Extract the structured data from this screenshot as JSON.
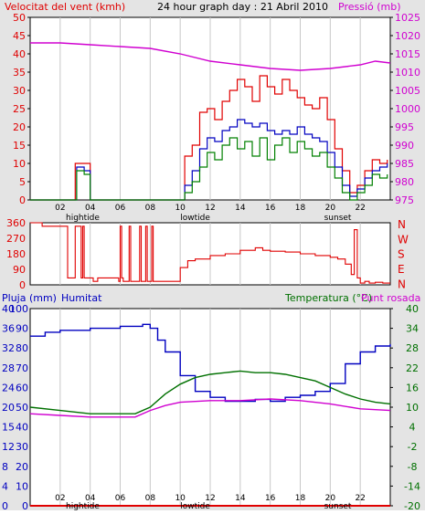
{
  "colors": {
    "wind": "#e00000",
    "gust": "#e00000",
    "avg": "#0000c0",
    "green": "#008000",
    "pressure": "#d000d0",
    "humidity": "#0000c0",
    "temperature": "#007000",
    "dewpoint": "#d000d0",
    "rain": "#e00000",
    "grid": "#c8c8c8",
    "panel_bg": "#ffffff",
    "outer_bg": "#e4e4e4",
    "black": "#000000"
  },
  "chart_data": [
    {
      "type": "line",
      "title": "24 hour graph day : 21 Abril 2010",
      "left_label": "Velocitat del vent (kmh)",
      "right_label": "Pressió (mb)",
      "x_ticks": [
        "02",
        "04",
        "06",
        "08",
        "10",
        "12",
        "14",
        "16",
        "18",
        "20",
        "22"
      ],
      "x_annotations": [
        {
          "x": 3.5,
          "text": "hightide"
        },
        {
          "x": 11.0,
          "text": "lowtide"
        },
        {
          "x": 20.5,
          "text": "sunset"
        }
      ],
      "xlim": [
        0,
        24
      ],
      "ylim_left": [
        0,
        50
      ],
      "yticks_left": [
        0,
        5,
        10,
        15,
        20,
        25,
        30,
        35,
        40,
        45,
        50
      ],
      "ylim_right": [
        975,
        1025
      ],
      "yticks_right": [
        975,
        980,
        985,
        990,
        995,
        1000,
        1005,
        1010,
        1015,
        1020,
        1025
      ],
      "series": [
        {
          "key": "gust",
          "axis": "left",
          "x": [
            0,
            2.5,
            3.0,
            3.6,
            4.0,
            9.9,
            10.3,
            10.8,
            11.3,
            11.8,
            12.3,
            12.8,
            13.3,
            13.8,
            14.3,
            14.8,
            15.3,
            15.8,
            16.3,
            16.8,
            17.3,
            17.8,
            18.3,
            18.8,
            19.3,
            19.8,
            20.3,
            20.8,
            21.3,
            21.8,
            22.3,
            22.8,
            23.3,
            23.8
          ],
          "y": [
            0,
            0,
            10,
            10,
            0,
            0,
            12,
            15,
            24,
            25,
            22,
            27,
            30,
            33,
            31,
            27,
            34,
            31,
            29,
            33,
            30,
            28,
            26,
            25,
            28,
            22,
            14,
            8,
            2,
            4,
            8,
            11,
            10,
            11
          ]
        },
        {
          "key": "avg",
          "axis": "left",
          "x": [
            0,
            2.6,
            3.1,
            3.6,
            4.0,
            9.9,
            10.3,
            10.8,
            11.3,
            11.8,
            12.3,
            12.8,
            13.3,
            13.8,
            14.3,
            14.8,
            15.3,
            15.8,
            16.3,
            16.8,
            17.3,
            17.8,
            18.3,
            18.8,
            19.3,
            19.8,
            20.3,
            20.8,
            21.3,
            21.8,
            22.3,
            22.8,
            23.3,
            23.8
          ],
          "y": [
            0,
            0,
            9,
            8,
            0,
            0,
            4,
            8,
            14,
            17,
            16,
            19,
            20,
            22,
            21,
            20,
            21,
            19,
            18,
            19,
            18,
            20,
            18,
            17,
            16,
            13,
            9,
            4,
            1,
            3,
            6,
            8,
            9,
            10
          ]
        },
        {
          "key": "green",
          "axis": "left",
          "x": [
            0,
            2.6,
            3.1,
            3.6,
            4.0,
            9.9,
            10.3,
            10.8,
            11.3,
            11.8,
            12.3,
            12.8,
            13.3,
            13.8,
            14.3,
            14.8,
            15.3,
            15.8,
            16.3,
            16.8,
            17.3,
            17.8,
            18.3,
            18.8,
            19.3,
            19.8,
            20.3,
            20.8,
            21.3,
            21.8,
            22.3,
            22.8,
            23.3,
            23.8
          ],
          "y": [
            0,
            0,
            8,
            7,
            0,
            0,
            2,
            5,
            9,
            13,
            11,
            15,
            17,
            14,
            16,
            12,
            17,
            11,
            15,
            17,
            13,
            16,
            14,
            12,
            13,
            9,
            6,
            2,
            0,
            2,
            4,
            7,
            6,
            7
          ]
        },
        {
          "key": "pressure",
          "axis": "right",
          "x": [
            0,
            2,
            4,
            6,
            8,
            10,
            12,
            14,
            16,
            18,
            20,
            22,
            23,
            24
          ],
          "y": [
            1018,
            1018,
            1017.5,
            1017,
            1016.5,
            1015,
            1013,
            1012,
            1011,
            1010.5,
            1011,
            1012,
            1013,
            1012.5
          ]
        }
      ]
    },
    {
      "type": "line",
      "right_label_letters": [
        "N",
        "W",
        "S",
        "E",
        "N"
      ],
      "xlim": [
        0,
        24
      ],
      "ylim": [
        0,
        360
      ],
      "yticks": [
        0,
        90,
        180,
        270,
        360
      ],
      "series": [
        {
          "key": "dir",
          "x": [
            0,
            0.2,
            0.8,
            2.4,
            2.5,
            2.9,
            3.0,
            3.4,
            3.5,
            3.6,
            4.0,
            4.2,
            4.5,
            5.0,
            5.5,
            5.9,
            6.0,
            6.1,
            6.2,
            6.6,
            6.7,
            7.3,
            7.4,
            7.7,
            7.8,
            8.1,
            8.2,
            8.5,
            9.5,
            9.8,
            10.0,
            10.5,
            11.0,
            12.0,
            13.0,
            14.0,
            15.0,
            15.5,
            16.0,
            17.0,
            18.0,
            19.0,
            20.0,
            20.5,
            21.0,
            21.4,
            21.6,
            21.8,
            22.0,
            22.3,
            22.6,
            23.0,
            23.5,
            24.0
          ],
          "y": [
            360,
            360,
            340,
            340,
            40,
            40,
            340,
            40,
            340,
            40,
            40,
            20,
            40,
            40,
            40,
            20,
            340,
            40,
            20,
            340,
            20,
            340,
            20,
            340,
            20,
            340,
            20,
            20,
            20,
            20,
            100,
            140,
            150,
            170,
            180,
            200,
            215,
            200,
            195,
            190,
            180,
            170,
            160,
            150,
            120,
            60,
            320,
            40,
            10,
            20,
            10,
            15,
            10,
            10
          ]
        }
      ]
    },
    {
      "type": "line",
      "left_label": "Pluja (mm)",
      "left_label2": "Humitat",
      "right_label": "Temperatura (°C)",
      "right_label2": "Punt rosada",
      "x_ticks": [
        "02",
        "04",
        "06",
        "08",
        "10",
        "12",
        "14",
        "16",
        "18",
        "20",
        "22"
      ],
      "x_annotations": [
        {
          "x": 3.5,
          "text": "hightide"
        },
        {
          "x": 11.0,
          "text": "lowtide"
        },
        {
          "x": 20.5,
          "text": "sunset"
        }
      ],
      "xlim": [
        0,
        24
      ],
      "ylim_rain": [
        0,
        40
      ],
      "yticks_rain": [
        0,
        4,
        8,
        12,
        15,
        20,
        24,
        28,
        32,
        36,
        40
      ],
      "ylim_hum": [
        0,
        100
      ],
      "yticks_hum": [
        0,
        10,
        20,
        30,
        40,
        50,
        60,
        70,
        80,
        90,
        100
      ],
      "ylim_temp": [
        -20,
        40
      ],
      "yticks_temp": [
        -20,
        -14,
        -8,
        -2,
        4,
        10,
        16,
        22,
        28,
        34,
        40
      ],
      "series": [
        {
          "key": "humidity",
          "axis": "hum",
          "x": [
            0,
            1,
            2,
            3,
            4,
            5,
            6,
            7,
            7.5,
            8,
            8.5,
            9,
            10,
            11,
            12,
            13,
            14,
            15,
            16,
            17,
            18,
            19,
            20,
            21,
            22,
            23,
            24
          ],
          "y": [
            86,
            88,
            89,
            89,
            90,
            90,
            91,
            91,
            92,
            90,
            84,
            78,
            66,
            58,
            55,
            53,
            53,
            54,
            53,
            55,
            56,
            58,
            62,
            72,
            78,
            81,
            82
          ]
        },
        {
          "key": "temperature",
          "axis": "temp",
          "x": [
            0,
            2,
            4,
            6,
            7,
            8,
            9,
            10,
            11,
            12,
            13,
            14,
            15,
            16,
            17,
            18,
            19,
            20,
            21,
            22,
            23,
            24
          ],
          "y": [
            10,
            9,
            8,
            8,
            8,
            10,
            14,
            17,
            19,
            20,
            20.5,
            21,
            20.5,
            20.5,
            20,
            19,
            18,
            16,
            14,
            12.5,
            11.5,
            11
          ]
        },
        {
          "key": "dewpoint",
          "axis": "temp",
          "x": [
            0,
            2,
            4,
            6,
            7,
            8,
            9,
            10,
            12,
            14,
            16,
            18,
            20,
            22,
            24
          ],
          "y": [
            8,
            7.5,
            7,
            7,
            7,
            9,
            10.5,
            11.5,
            12,
            12,
            12.5,
            12,
            11,
            9.5,
            9
          ]
        },
        {
          "key": "rain",
          "axis": "rain",
          "x": [
            0,
            24
          ],
          "y": [
            0,
            0
          ]
        }
      ]
    }
  ]
}
